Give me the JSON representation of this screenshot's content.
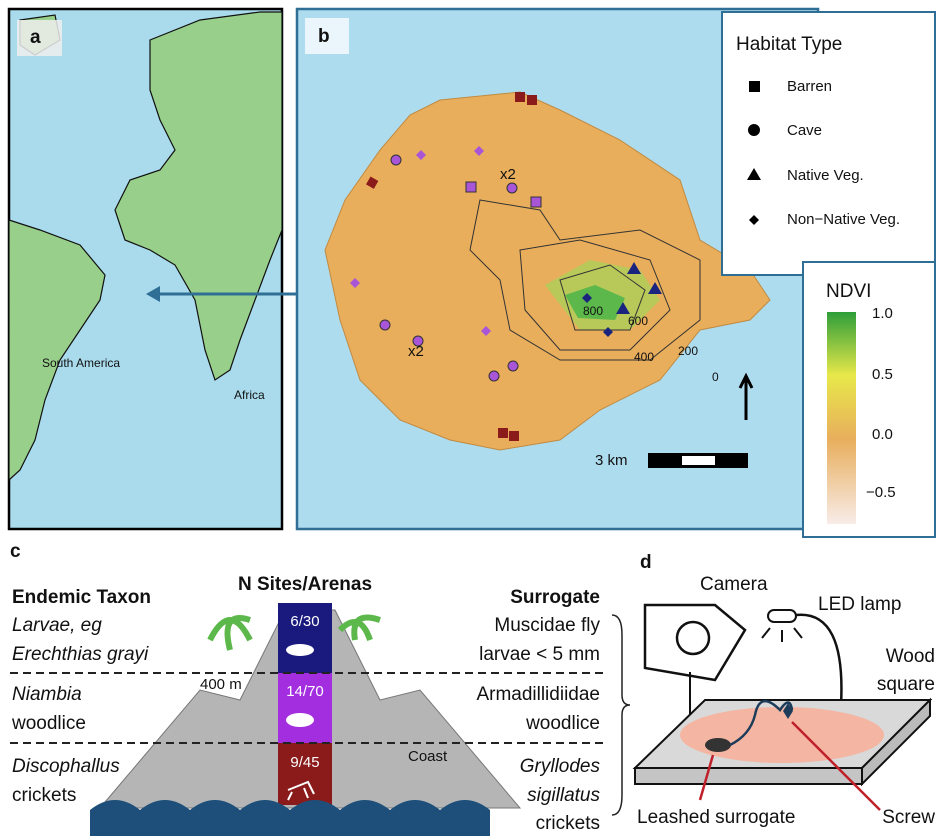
{
  "panel_a": {
    "label": "a",
    "places": [
      "South America",
      "Africa"
    ]
  },
  "panel_b": {
    "label": "b",
    "annotations": [
      "x2",
      "x2"
    ],
    "contours": [
      "800",
      "600",
      "400",
      "200",
      "0"
    ],
    "scale": "3 km",
    "habitat_legend": {
      "title": "Habitat Type",
      "items": [
        "Barren",
        "Cave",
        "Native Veg.",
        "Non−Native Veg."
      ]
    },
    "ndvi_legend": {
      "title": "NDVI",
      "ticks": [
        "1.0",
        "0.5",
        "0.0",
        "−0.5"
      ]
    }
  },
  "panel_c": {
    "label": "c",
    "left_header": "Endemic Taxon",
    "center_header": "N Sites/Arenas",
    "right_header": "Surrogate",
    "elevation": "400 m",
    "coast": "Coast",
    "rows": [
      {
        "taxon": [
          "Larvae, eg",
          "Erechthias grayi"
        ],
        "count": "6/30",
        "surrogate": [
          "Muscidae fly",
          "larvae < 5 mm"
        ]
      },
      {
        "taxon": [
          "Niambia",
          "woodlice"
        ],
        "count": "14/70",
        "surrogate": [
          "Armadillidiidae",
          "woodlice"
        ]
      },
      {
        "taxon": [
          "Discophallus",
          "crickets"
        ],
        "count": "9/45",
        "surrogate": [
          "Gryllodes",
          "sigillatus",
          "crickets"
        ]
      }
    ]
  },
  "panel_d": {
    "label": "d",
    "camera": "Camera",
    "lamp": "LED lamp",
    "wood": [
      "Wood",
      "square"
    ],
    "surrogate": "Leashed surrogate",
    "screw": "Screw"
  }
}
